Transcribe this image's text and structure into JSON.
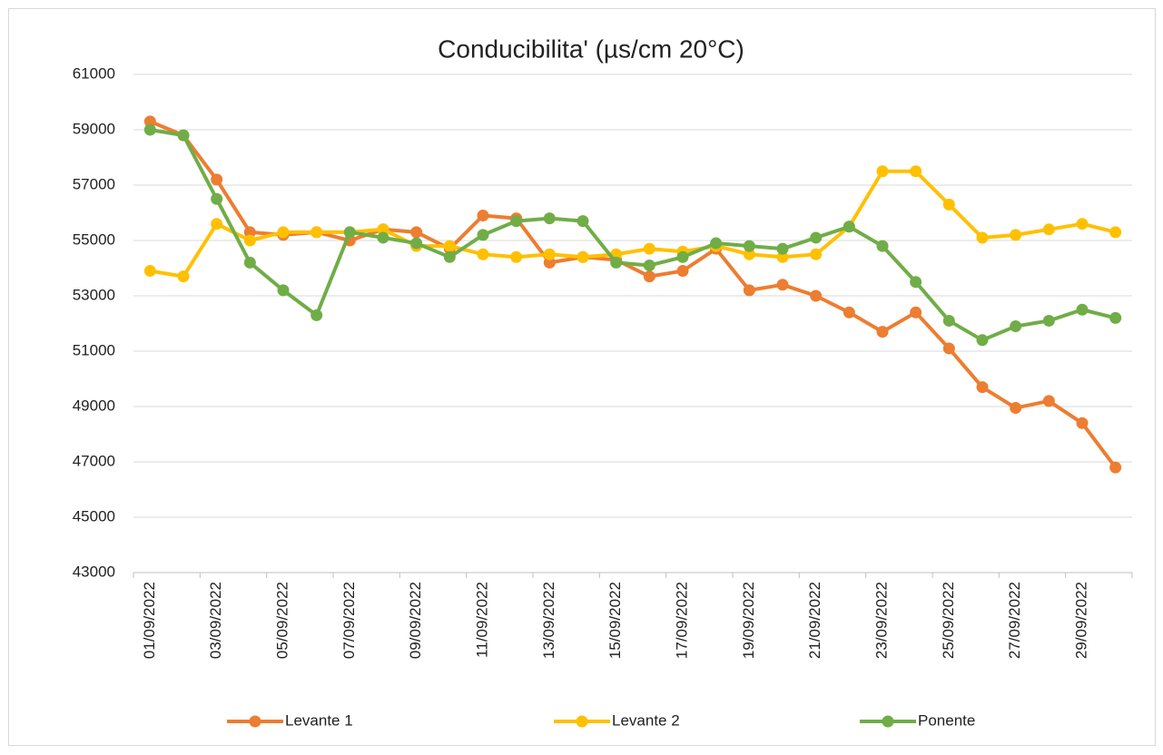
{
  "chart_data": {
    "type": "line",
    "title": "Conducibilita' (µs/cm 20°C)",
    "categories": [
      "01/09/2022",
      null,
      "03/09/2022",
      null,
      "05/09/2022",
      null,
      "07/09/2022",
      null,
      "09/09/2022",
      null,
      "11/09/2022",
      null,
      "13/09/2022",
      null,
      "15/09/2022",
      null,
      "17/09/2022",
      null,
      "19/09/2022",
      null,
      "21/09/2022",
      null,
      "23/09/2022",
      null,
      "25/09/2022",
      null,
      "27/09/2022",
      null,
      "29/09/2022",
      null
    ],
    "series": [
      {
        "name": "Levante 1",
        "color": "#ed7d31",
        "values": [
          59300,
          58800,
          57200,
          55300,
          55200,
          55300,
          55000,
          55400,
          55300,
          54700,
          55900,
          55800,
          54200,
          54400,
          54300,
          53700,
          53900,
          54700,
          53200,
          53400,
          53000,
          52400,
          51700,
          52400,
          51100,
          49700,
          48950,
          49200,
          48400,
          46800
        ]
      },
      {
        "name": "Levante 2",
        "color": "#ffc000",
        "values": [
          53900,
          53700,
          55600,
          55000,
          55300,
          55300,
          55300,
          55400,
          54800,
          54800,
          54500,
          54400,
          54500,
          54400,
          54500,
          54700,
          54600,
          54800,
          54500,
          54400,
          54500,
          55500,
          57500,
          57500,
          56300,
          55100,
          55200,
          55400,
          55600,
          55300
        ]
      },
      {
        "name": "Ponente",
        "color": "#70ad47",
        "values": [
          59000,
          58800,
          56500,
          54200,
          53200,
          52300,
          55300,
          55100,
          54900,
          54400,
          55200,
          55700,
          55800,
          55700,
          54200,
          54100,
          54400,
          54900,
          54800,
          54700,
          55100,
          55500,
          54800,
          53500,
          52100,
          51400,
          51900,
          52100,
          52500,
          52200
        ]
      }
    ],
    "ylim": [
      43000,
      61000
    ],
    "yticks": [
      43000,
      45000,
      47000,
      49000,
      51000,
      53000,
      55000,
      57000,
      59000,
      61000
    ],
    "grid": true,
    "legend": "bottom"
  }
}
